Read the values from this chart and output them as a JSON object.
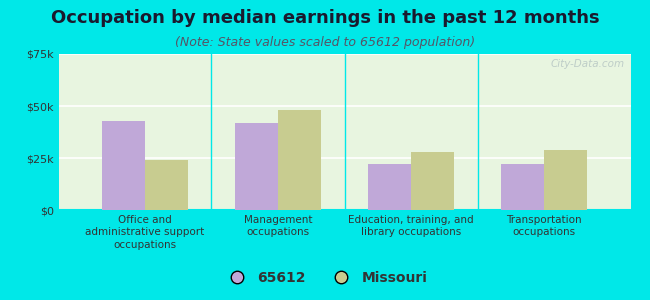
{
  "title": "Occupation by median earnings in the past 12 months",
  "subtitle": "(Note: State values scaled to 65612 population)",
  "categories": [
    "Office and\nadministrative support\noccupations",
    "Management\noccupations",
    "Education, training, and\nlibrary occupations",
    "Transportation\noccupations"
  ],
  "values_65612": [
    43000,
    42000,
    22000,
    22000
  ],
  "values_missouri": [
    24000,
    48000,
    28000,
    29000
  ],
  "bar_color_65612": "#c0a8d8",
  "bar_color_missouri": "#c8cc90",
  "background_outer": "#00e8e8",
  "background_chart_top": "#e8f5e0",
  "background_chart_bottom": "#f5fff0",
  "ylim": [
    0,
    75000
  ],
  "yticks": [
    0,
    25000,
    50000,
    75000
  ],
  "ytick_labels": [
    "$0",
    "$25k",
    "$50k",
    "$75k"
  ],
  "legend_label_1": "65612",
  "legend_label_2": "Missouri",
  "title_fontsize": 13,
  "subtitle_fontsize": 9,
  "bar_width": 0.32
}
